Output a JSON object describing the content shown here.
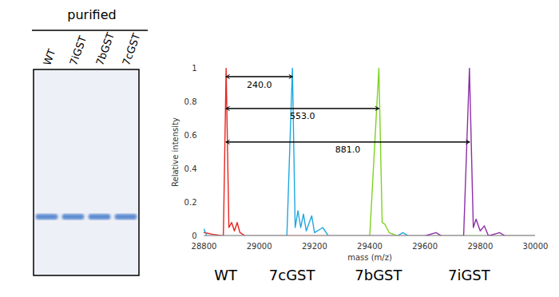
{
  "gel": {
    "title": "purified",
    "lanes": [
      "WT",
      "7iGST",
      "7bGST",
      "7cGST"
    ]
  },
  "chart_data": {
    "type": "line",
    "xlabel": "mass (m/z)",
    "ylabel": "Relative intensity",
    "xlim": [
      28800,
      30000
    ],
    "xticks": [
      28800,
      29000,
      29200,
      29400,
      29600,
      29800,
      30000
    ],
    "ylim": [
      0,
      1
    ],
    "yticks": [
      0,
      0.2,
      0.4,
      0.6,
      0.8,
      1
    ],
    "grid": false,
    "series": [
      {
        "name": "WT",
        "color": "#e8251f",
        "x": [
          28800,
          28830,
          28870,
          28880,
          28890,
          28900,
          28910,
          28920,
          28930,
          28950,
          30000
        ],
        "values": [
          0.02,
          0.01,
          0,
          1,
          0.05,
          0.08,
          0.03,
          0.08,
          0.02,
          0,
          0
        ]
      },
      {
        "name": "7cGST",
        "color": "#1fa8e0",
        "x": [
          28800,
          28810,
          29100,
          29120,
          29130,
          29140,
          29150,
          29160,
          29170,
          29190,
          29200,
          29230,
          29250,
          29500,
          29520,
          29540,
          30000
        ],
        "values": [
          0.04,
          0,
          0,
          1,
          0.05,
          0.15,
          0.05,
          0.13,
          0.03,
          0.12,
          0.02,
          0.05,
          0,
          0,
          0.02,
          0,
          0
        ]
      },
      {
        "name": "7bGST",
        "color": "#7ed321",
        "x": [
          28800,
          29400,
          29433,
          29445,
          29455,
          29470,
          29500,
          30000
        ],
        "values": [
          0,
          0,
          1,
          0.08,
          0.07,
          0.02,
          0,
          0
        ]
      },
      {
        "name": "7iGST",
        "color": "#8e2fa8",
        "x": [
          28800,
          29600,
          29640,
          29660,
          29740,
          29761,
          29775,
          29785,
          29800,
          29815,
          29830,
          29870,
          29890,
          30000
        ],
        "values": [
          0,
          0,
          0.02,
          0,
          0,
          1,
          0.05,
          0.1,
          0.03,
          0.06,
          0,
          0.02,
          0,
          0
        ]
      }
    ],
    "annotations": [
      {
        "text": "240.0",
        "from": 28880,
        "to": 29120,
        "y": 0.95
      },
      {
        "text": "553.0",
        "from": 28880,
        "to": 29433,
        "y": 0.76
      },
      {
        "text": "881.0",
        "from": 28880,
        "to": 29761,
        "y": 0.56
      }
    ]
  }
}
